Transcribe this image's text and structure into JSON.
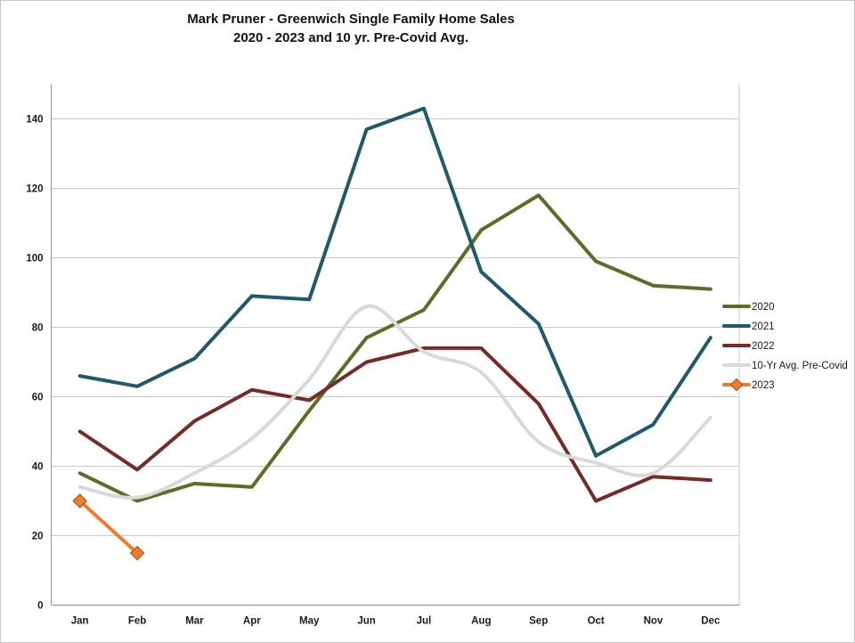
{
  "title": {
    "line1": "Mark Pruner - Greenwich Single Family Home Sales",
    "line2": "2020 - 2023 and 10 yr. Pre-Covid Avg."
  },
  "chart_data": {
    "type": "line",
    "categories": [
      "Jan",
      "Feb",
      "Mar",
      "Apr",
      "May",
      "Jun",
      "Jul",
      "Aug",
      "Sep",
      "Oct",
      "Nov",
      "Dec"
    ],
    "series": [
      {
        "name": "2020",
        "color": "#5A6E28",
        "smooth": false,
        "marker": "none",
        "values": [
          38,
          30,
          35,
          34,
          56,
          77,
          85,
          108,
          118,
          99,
          92,
          91
        ]
      },
      {
        "name": "2021",
        "color": "#20596B",
        "smooth": false,
        "marker": "none",
        "values": [
          66,
          63,
          71,
          89,
          88,
          137,
          143,
          96,
          81,
          43,
          52,
          77
        ]
      },
      {
        "name": "2022",
        "color": "#772B26",
        "smooth": false,
        "marker": "none",
        "values": [
          50,
          39,
          53,
          62,
          59,
          70,
          74,
          74,
          58,
          30,
          37,
          36
        ]
      },
      {
        "name": "10-Yr Avg. Pre-Covid",
        "color": "#D9D9D9",
        "smooth": true,
        "marker": "none",
        "values": [
          34,
          31,
          38,
          48,
          65,
          86,
          73,
          67,
          47,
          41,
          38,
          54
        ]
      },
      {
        "name": "2023",
        "color": "#ED7D31",
        "smooth": false,
        "marker": "diamond",
        "marker_border": "#BC5B17",
        "values": [
          30,
          15
        ]
      }
    ],
    "ylim": [
      0,
      150
    ],
    "yticks": [
      0,
      20,
      40,
      60,
      80,
      100,
      120,
      140
    ],
    "grid": true,
    "legend_position": "right",
    "xlabel": "",
    "ylabel": ""
  },
  "style_colors": {
    "gridline": "#C9C9C9",
    "axis_line": "#9B9B9B",
    "tick_text": "#1A1A1A",
    "title_text": "#111111"
  }
}
